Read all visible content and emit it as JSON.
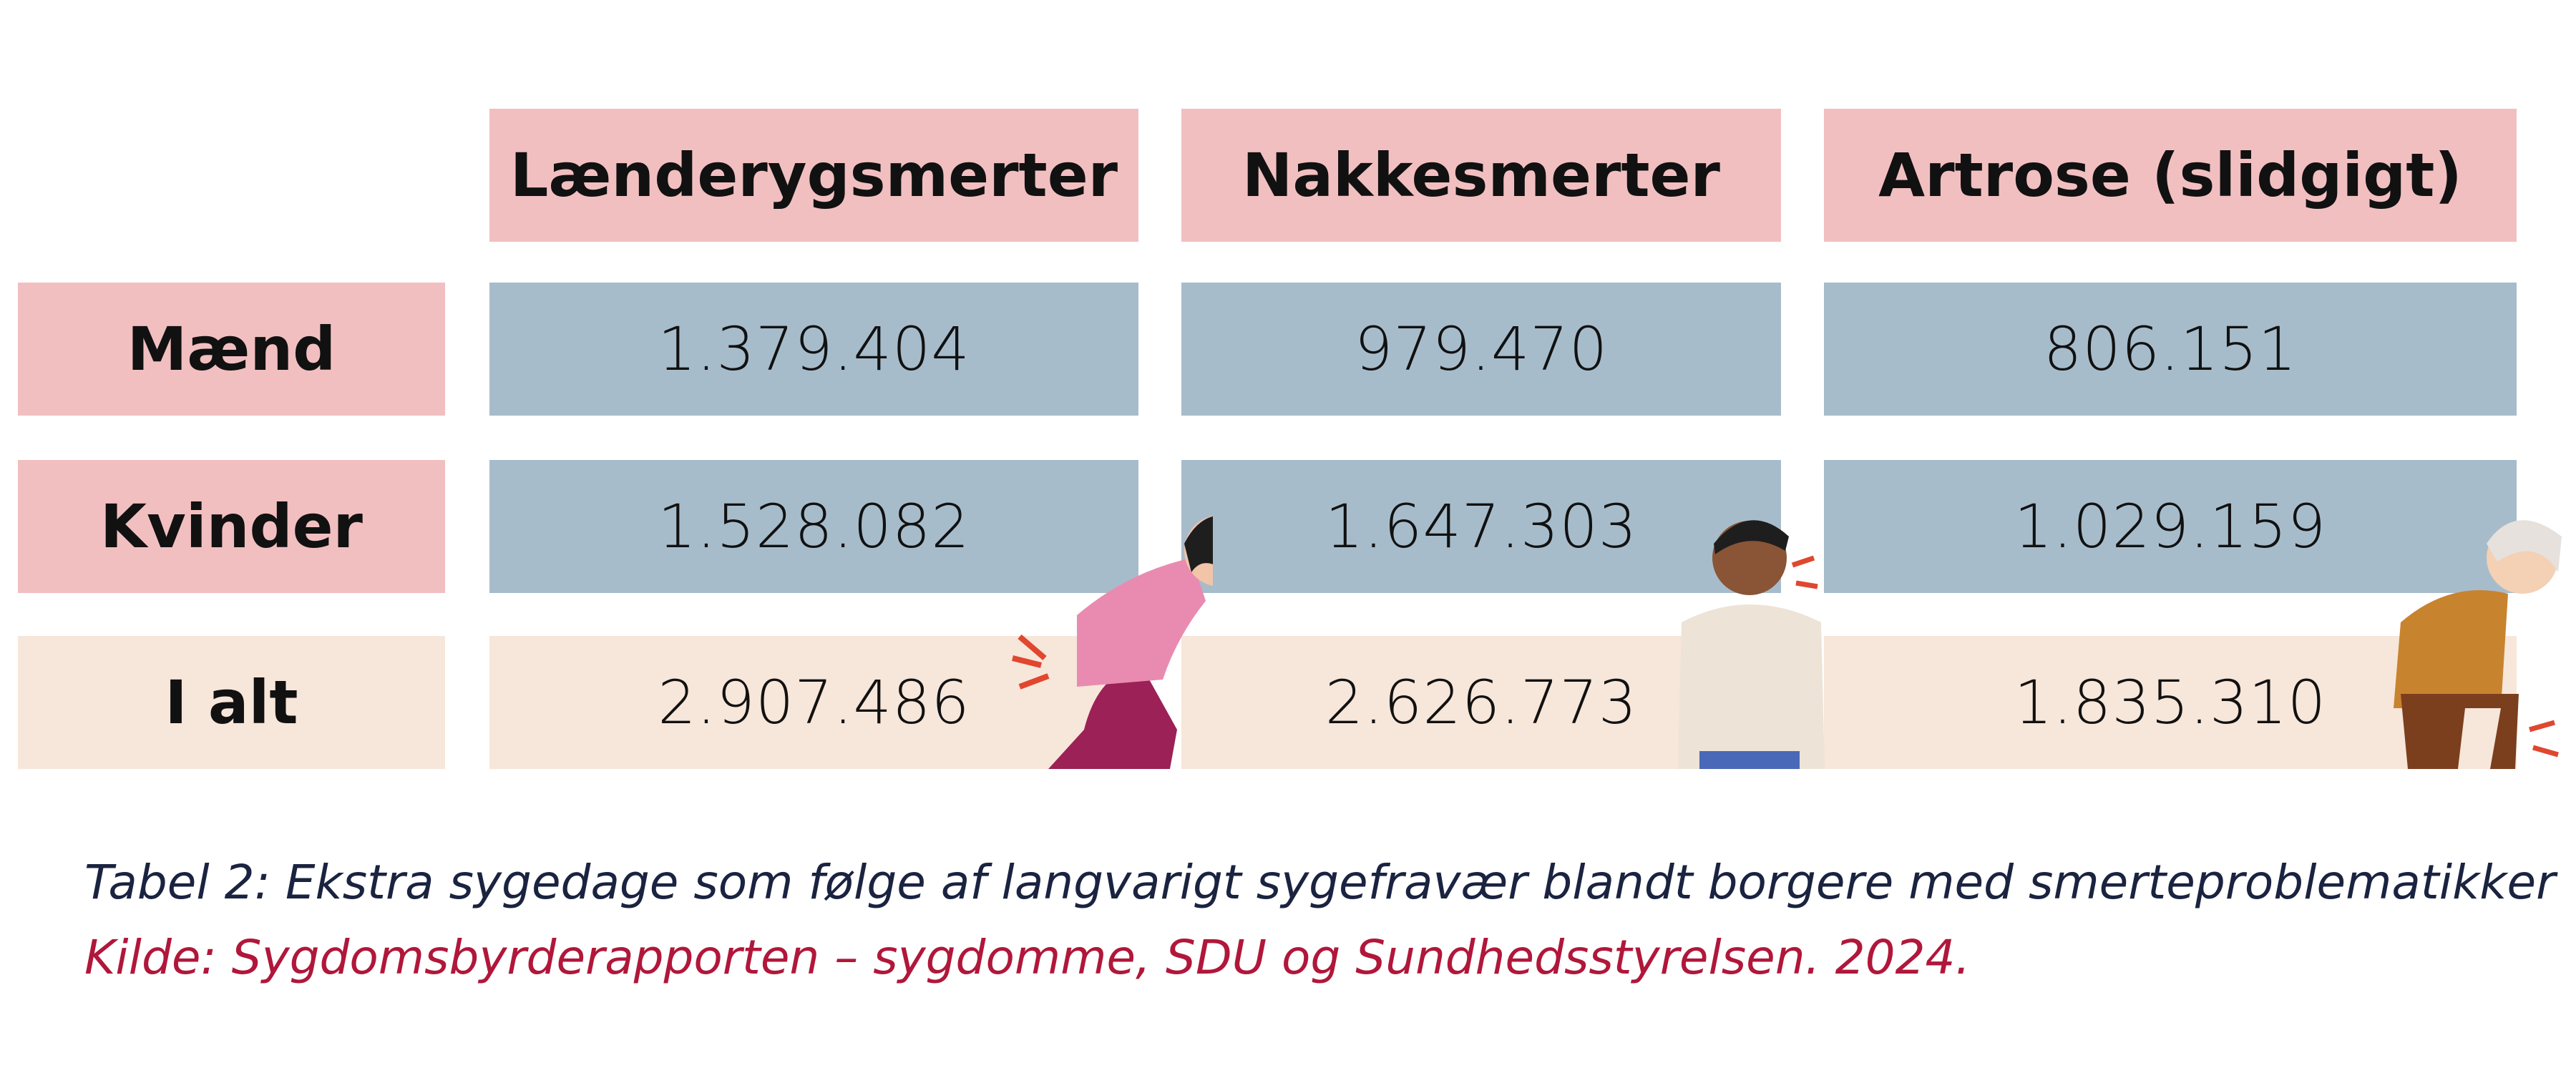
{
  "table": {
    "columns": [
      "Lænderygsmerter",
      "Nakkesmerter",
      "Artrose (slidgigt)"
    ],
    "rows": [
      {
        "label": "Mænd",
        "cells": [
          "1.379.404",
          "979.470",
          "806.151"
        ]
      },
      {
        "label": "Kvinder",
        "cells": [
          "1.528.082",
          "1.647.303",
          "1.029.159"
        ]
      },
      {
        "label": "I alt",
        "cells": [
          "2.907.486",
          "2.626.773",
          "1.835.310"
        ]
      }
    ]
  },
  "caption": "Tabel 2: Ekstra sygedage som følge af langvarigt sygefravær blandt borgere med smerteproblematikker",
  "source": "Kilde: Sygdomsbyrderapporten – sygdomme, SDU og Sundhedsstyrelsen. 2024."
}
